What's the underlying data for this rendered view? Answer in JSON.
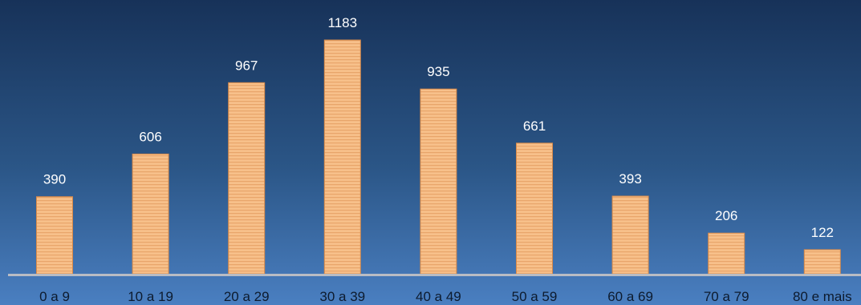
{
  "chart_data": {
    "type": "bar",
    "categories": [
      "0 a 9",
      "10 a 19",
      "20 a 29",
      "30 a 39",
      "40 a 49",
      "50 a 59",
      "60 a 69",
      "70 a 79",
      "80 e mais"
    ],
    "values": [
      390,
      606,
      967,
      1183,
      935,
      661,
      393,
      206,
      122
    ],
    "title": "",
    "xlabel": "",
    "ylabel": "",
    "ylim": [
      0,
      1200
    ],
    "grid": false,
    "legend": "none",
    "data_labels": true,
    "colors": {
      "bar_fill": "#f7c08a",
      "bar_stripe": "#e8a56a",
      "bar_edge": "#d98b4a",
      "baseline": "#b8bcc4",
      "label_text": "#ffffff",
      "tick_text": "#0d1b2e"
    }
  }
}
